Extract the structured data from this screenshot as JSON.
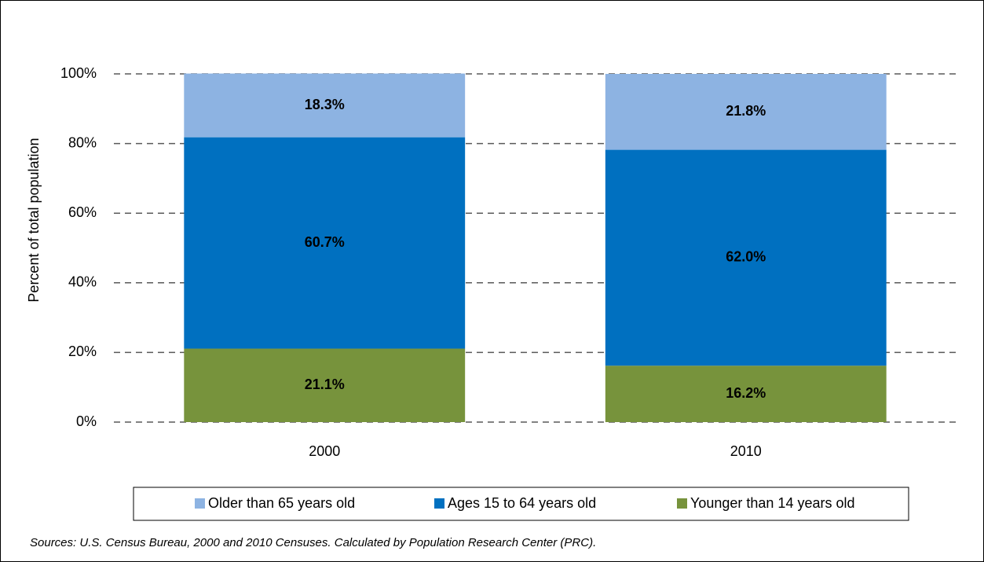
{
  "chart_data": {
    "type": "stacked_bar",
    "ylabel": "Percent of total population",
    "categories": [
      "2000",
      "2010"
    ],
    "series": [
      {
        "name": "Older than 65 years old",
        "color": "#8db3e2",
        "values": [
          18.3,
          21.8
        ],
        "value_labels": [
          "18.3%",
          "21.8%"
        ]
      },
      {
        "name": "Ages 15 to 64 years old",
        "color": "#0070c0",
        "values": [
          60.7,
          62.0
        ],
        "value_labels": [
          "60.7%",
          "62.0%"
        ]
      },
      {
        "name": "Younger than 14 years old",
        "color": "#77933c",
        "values": [
          21.1,
          16.2
        ],
        "value_labels": [
          "21.1%",
          "16.2%"
        ]
      }
    ],
    "ylim": [
      0,
      100
    ],
    "yticks": [
      {
        "value": 0,
        "label": "0%"
      },
      {
        "value": 20,
        "label": "20%"
      },
      {
        "value": 40,
        "label": "40%"
      },
      {
        "value": 60,
        "label": "60%"
      },
      {
        "value": 80,
        "label": "80%"
      },
      {
        "value": 100,
        "label": "100%"
      }
    ],
    "grid": true,
    "legend": "bottom",
    "source": "Sources: U.S. Census Bureau, 2000 and 2010 Censuses. Calculated by Population Research Center (PRC)."
  }
}
